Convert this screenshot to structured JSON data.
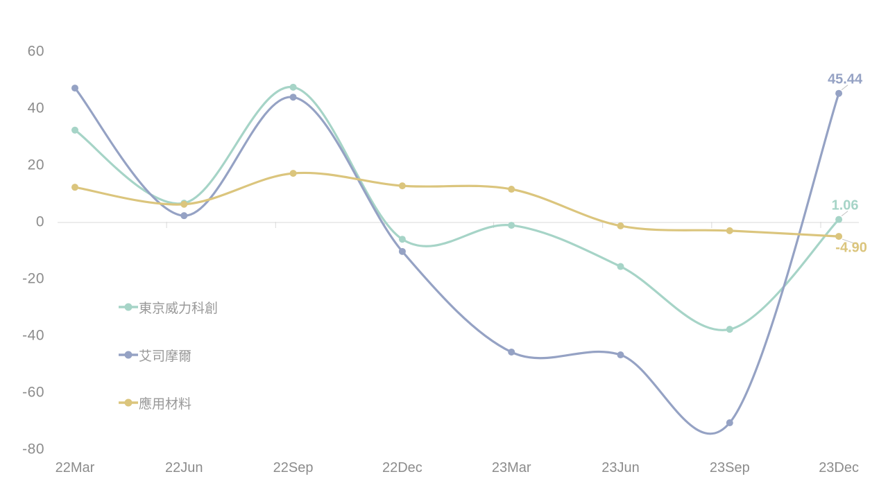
{
  "chart_data": {
    "type": "line",
    "smooth": true,
    "grid": false,
    "title": "",
    "xlabel": "",
    "ylabel": "",
    "background": "#ffffff",
    "axis_color": "#d9d9d9",
    "axis_text_color": "#8c8c8c",
    "legend_text_color": "#999999",
    "legend_position": "left-middle",
    "ylim": [
      -80,
      60
    ],
    "y_ticks": [
      60,
      40,
      20,
      0,
      -20,
      -40,
      -60,
      -80
    ],
    "categories": [
      "22Mar",
      "22Jun",
      "22Sep",
      "22Dec",
      "23Mar",
      "23Jun",
      "23Sep",
      "23Dec"
    ],
    "series": [
      {
        "id": "tokyo-electron",
        "name": "東京威力科創",
        "color": "#a6d4c7",
        "values": [
          32.5,
          6.8,
          47.6,
          -5.9,
          -1.0,
          -15.5,
          -37.6,
          1.06
        ],
        "end_label": "1.06",
        "end_label_side": "above"
      },
      {
        "id": "asml",
        "name": "艾司摩爾",
        "color": "#95a2c4",
        "values": [
          47.3,
          2.4,
          44.1,
          -10.2,
          -45.6,
          -46.6,
          -70.5,
          45.44
        ],
        "end_label": "45.44",
        "end_label_side": "above"
      },
      {
        "id": "applied-materials",
        "name": "應用材料",
        "color": "#dbc57d",
        "values": [
          12.4,
          6.4,
          17.3,
          12.9,
          11.7,
          -1.2,
          -2.9,
          -4.9
        ],
        "end_label": "-4.90",
        "end_label_side": "below"
      }
    ]
  }
}
